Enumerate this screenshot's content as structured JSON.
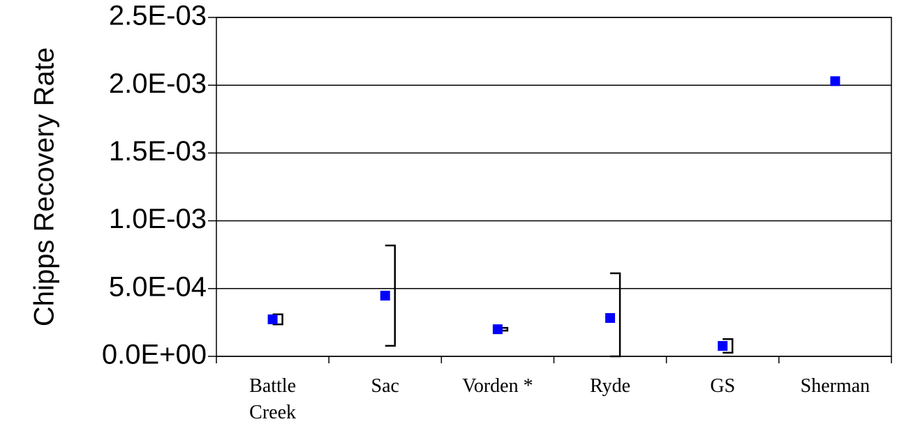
{
  "chart_data": {
    "type": "scatter",
    "y_label": "Chipps Recovery Rate",
    "categories": [
      "Battle Creek",
      "Sac",
      "Vorden *",
      "Ryde",
      "GS",
      "Sherman"
    ],
    "series": [
      {
        "color": "#0000ff",
        "values": [
          0.000273,
          0.000448,
          0.0002,
          0.000283,
          7.7e-05,
          0.00203
        ],
        "errors": [
          3.7e-05,
          0.00037,
          1e-05,
          0.00033,
          5e-05,
          null
        ]
      }
    ],
    "ylim": [
      0,
      0.0025
    ],
    "yticks": [
      {
        "value": 0,
        "label": "0.0E+00"
      },
      {
        "value": 0.0005,
        "label": "5.0E-04"
      },
      {
        "value": 0.001,
        "label": "1.0E-03"
      },
      {
        "value": 0.0015,
        "label": "1.5E-03"
      },
      {
        "value": 0.002,
        "label": "2.0E-03"
      },
      {
        "value": 0.0025,
        "label": "2.5E-03"
      }
    ],
    "grid": true
  }
}
